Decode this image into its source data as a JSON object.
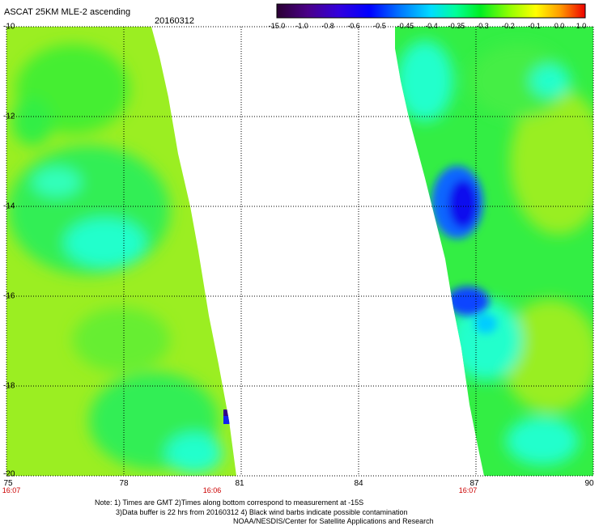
{
  "header": {
    "title": "ASCAT 25KM MLE-2 ascending",
    "date": "20160312"
  },
  "colorbar": {
    "labels": [
      "-15.0",
      "-1.0",
      "-0.8",
      "-0.6",
      "-0.5",
      "-0.45",
      "-0.4",
      "-0.35",
      "-0.3",
      "-0.2",
      "-0.1",
      "0.0",
      "1.0"
    ],
    "colors": [
      "#2a0033",
      "#4a0088",
      "#5500dd",
      "#0000ff",
      "#0077ff",
      "#00ccff",
      "#00ffee",
      "#00ff99",
      "#00ee22",
      "#88ff00",
      "#ffff00",
      "#ffaa00",
      "#ff4400",
      "#ee0000"
    ]
  },
  "map": {
    "lon_labels": [
      "75",
      "78",
      "81",
      "84",
      "87",
      "90"
    ],
    "lat_labels": [
      "-10",
      "-12",
      "-14",
      "-16",
      "-18",
      "-20"
    ],
    "lon_range": [
      75,
      90
    ],
    "lat_range": [
      -20,
      -10
    ],
    "gridlines": true,
    "time_labels": [
      "16:07",
      "16:06",
      "16:07"
    ],
    "colors": {
      "background": "#9bee22",
      "green": "#33ee33",
      "cyan": "#22ffcc",
      "blue": "#1122ee",
      "dark_blue": "#330088"
    }
  },
  "footer": {
    "note_line1": "Note: 1) Times are GMT 2)Times along bottom correspond to measurement at -15S",
    "note_line2": "3)Data buffer is 22 hrs from 20160312 4) Black wind barbs indicate possible contamination",
    "credit": "NOAA/NESDIS/Center for Satellite Applications and Research"
  }
}
